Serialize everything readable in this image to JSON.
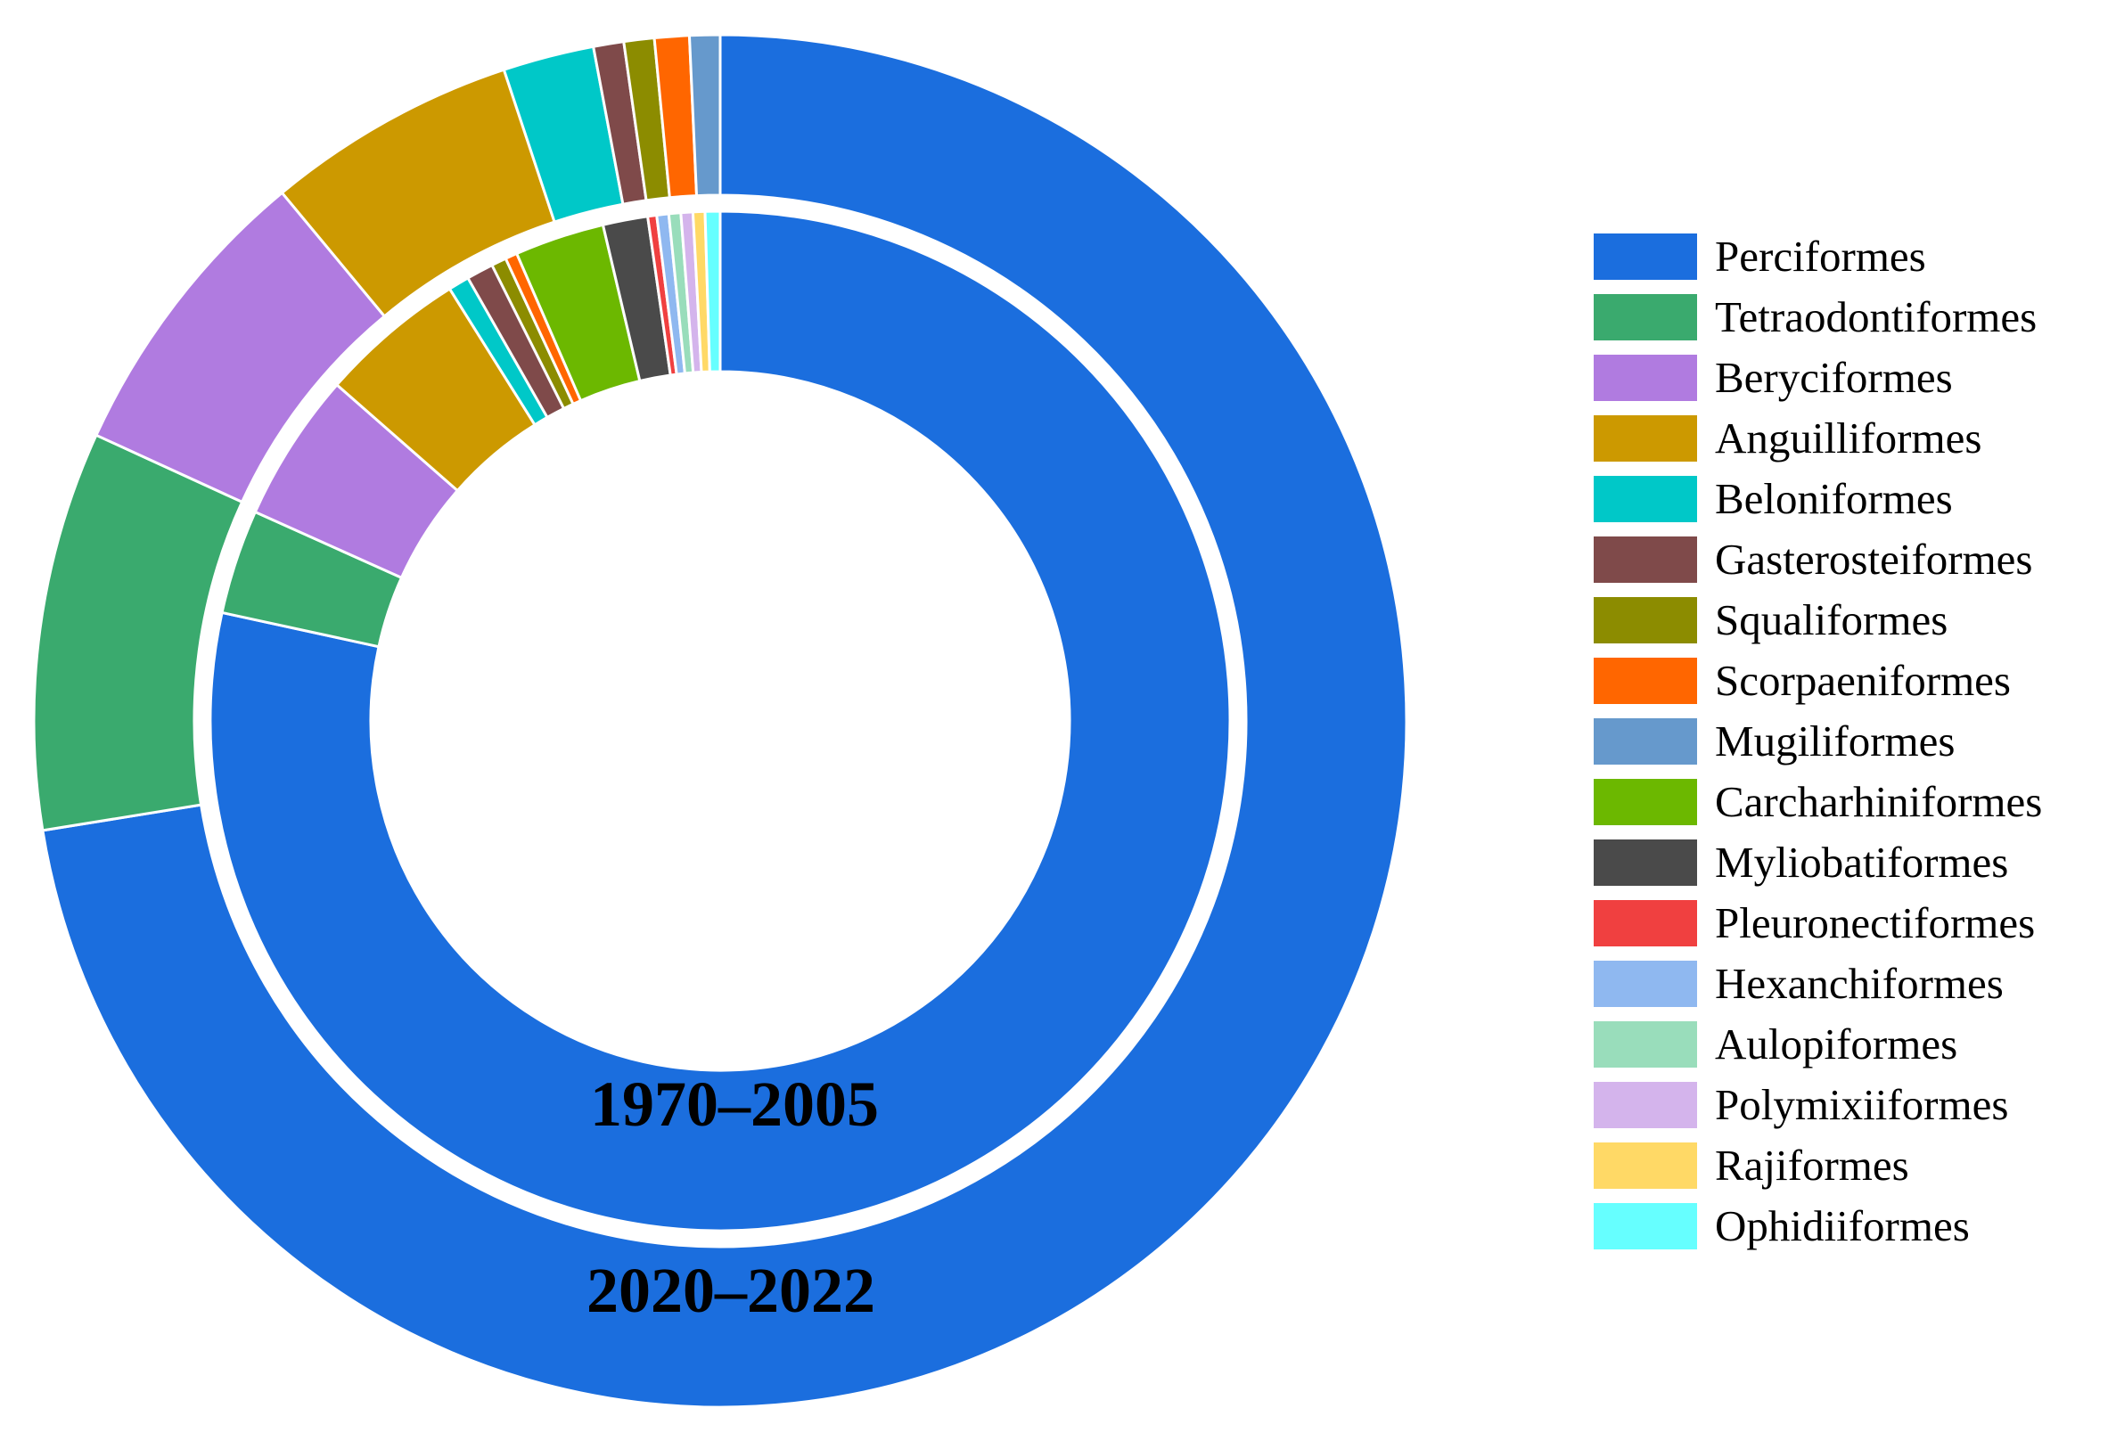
{
  "chart_data": {
    "type": "pie",
    "subtype": "nested-donut",
    "legend_position": "right",
    "categories": [
      "Perciformes",
      "Tetraodontiformes",
      "Beryciformes",
      "Anguilliformes",
      "Beloniformes",
      "Gasterosteiformes",
      "Squaliformes",
      "Scorpaeniformes",
      "Mugiliformes",
      "Carcharhiniformes",
      "Myliobatiformes",
      "Pleuronectiformes",
      "Hexanchiformes",
      "Aulopiformes",
      "Polymixiiformes",
      "Rajiformes",
      "Ophidiiformes"
    ],
    "colors": [
      "#1b6ede",
      "#3aaa6e",
      "#b07be0",
      "#cc9900",
      "#00c8c8",
      "#7f4a4a",
      "#8c8c00",
      "#ff6600",
      "#6699cc",
      "#6cb800",
      "#4a4a4a",
      "#f04040",
      "#8fb8f0",
      "#99ddbb",
      "#d4b4ec",
      "#ffd966",
      "#66ffff"
    ],
    "series": [
      {
        "name": "1970–2005",
        "ring": "inner",
        "values": [
          82.8,
          3.5,
          5.0,
          4.9,
          0.7,
          0.9,
          0.5,
          0.4,
          0,
          3.0,
          1.5,
          0.3,
          0.4,
          0.4,
          0.4,
          0.4,
          0.5
        ]
      },
      {
        "name": "2020–2022",
        "ring": "outer",
        "values": [
          71.0,
          9.2,
          7.0,
          5.8,
          2.1,
          0.7,
          0.7,
          0.8,
          0.7,
          0,
          0,
          0,
          0,
          0,
          0,
          0,
          0
        ]
      }
    ],
    "labels": {
      "inner": "1970–2005",
      "outer": "2020–2022"
    }
  }
}
